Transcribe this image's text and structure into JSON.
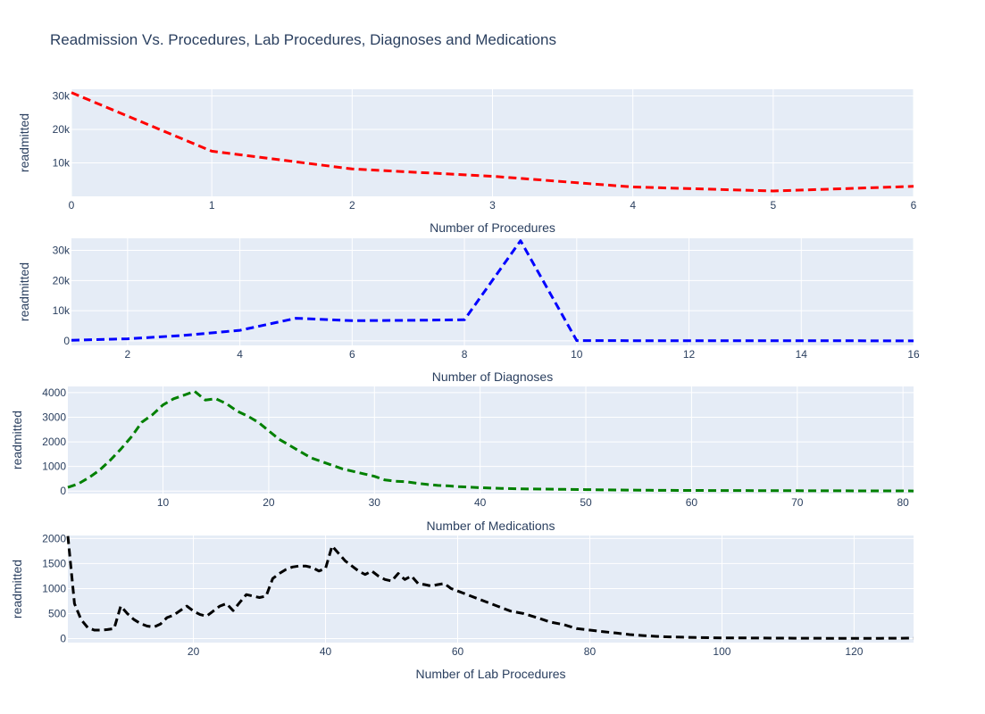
{
  "chart_data": {
    "type": "line",
    "title": "Readmission Vs. Procedures, Lab Procedures, Diagnoses and Medications",
    "subplots": [
      {
        "name": "procedures",
        "xlabel": "Number of Procedures",
        "ylabel": "readmitted",
        "color": "#ff0000",
        "dash": "dashed",
        "xlim": [
          0,
          6
        ],
        "ylim": [
          0,
          32000
        ],
        "xticks": [
          0,
          1,
          2,
          3,
          4,
          5,
          6
        ],
        "xtick_labels": [
          "0",
          "1",
          "2",
          "3",
          "4",
          "5",
          "6"
        ],
        "yticks": [
          10000,
          20000,
          30000
        ],
        "ytick_labels": [
          "10k",
          "20k",
          "30k"
        ],
        "x": [
          0,
          1,
          2,
          3,
          4,
          5,
          6
        ],
        "y": [
          31000,
          13500,
          8200,
          6000,
          2800,
          1600,
          3000
        ]
      },
      {
        "name": "diagnoses",
        "xlabel": "Number of Diagnoses",
        "ylabel": "readmitted",
        "color": "#0000ff",
        "dash": "dashed",
        "xlim": [
          1,
          16
        ],
        "ylim": [
          -1500,
          34000
        ],
        "xticks": [
          2,
          4,
          6,
          8,
          10,
          12,
          14,
          16
        ],
        "xtick_labels": [
          "2",
          "4",
          "6",
          "8",
          "10",
          "12",
          "14",
          "16"
        ],
        "yticks": [
          0,
          10000,
          20000,
          30000
        ],
        "ytick_labels": [
          "0",
          "10k",
          "20k",
          "30k"
        ],
        "x": [
          1,
          2,
          3,
          4,
          5,
          6,
          7,
          8,
          9,
          10,
          11,
          12,
          13,
          14,
          15,
          16
        ],
        "y": [
          200,
          700,
          1800,
          3500,
          7500,
          6700,
          6800,
          7000,
          33200,
          100,
          80,
          60,
          50,
          40,
          30,
          20
        ]
      },
      {
        "name": "medications",
        "xlabel": "Number of Medications",
        "ylabel": "readmitted",
        "color": "#008000",
        "dash": "dashed",
        "xlim": [
          1,
          81
        ],
        "ylim": [
          -100,
          4250
        ],
        "xticks": [
          10,
          20,
          30,
          40,
          50,
          60,
          70,
          80
        ],
        "xtick_labels": [
          "10",
          "20",
          "30",
          "40",
          "50",
          "60",
          "70",
          "80"
        ],
        "yticks": [
          0,
          1000,
          2000,
          3000,
          4000
        ],
        "ytick_labels": [
          "0",
          "1000",
          "2000",
          "3000",
          "4000"
        ],
        "x": [
          1,
          2,
          3,
          4,
          5,
          6,
          7,
          8,
          9,
          10,
          11,
          12,
          13,
          14,
          15,
          16,
          17,
          18,
          19,
          20,
          21,
          22,
          23,
          24,
          25,
          26,
          27,
          28,
          29,
          30,
          31,
          32,
          33,
          34,
          35,
          36,
          37,
          38,
          39,
          40,
          42,
          44,
          46,
          48,
          50,
          52,
          54,
          56,
          58,
          60,
          62,
          64,
          66,
          68,
          70,
          72,
          74,
          76,
          78,
          80,
          81
        ],
        "y": [
          150,
          300,
          550,
          850,
          1250,
          1700,
          2200,
          2800,
          3100,
          3500,
          3750,
          3900,
          4050,
          3700,
          3750,
          3550,
          3250,
          3050,
          2800,
          2450,
          2100,
          1850,
          1600,
          1350,
          1200,
          1050,
          900,
          800,
          700,
          600,
          450,
          400,
          380,
          320,
          270,
          230,
          210,
          180,
          160,
          140,
          110,
          90,
          80,
          70,
          60,
          50,
          40,
          35,
          30,
          28,
          25,
          22,
          20,
          18,
          16,
          14,
          12,
          10,
          8,
          7,
          6
        ]
      },
      {
        "name": "lab-procedures",
        "xlabel": "Number of Lab Procedures",
        "ylabel": "readmitted",
        "color": "#000000",
        "dash": "dashed",
        "xlim": [
          1,
          129
        ],
        "ylim": [
          -80,
          2060
        ],
        "xticks": [
          20,
          40,
          60,
          80,
          100,
          120
        ],
        "xtick_labels": [
          "20",
          "40",
          "60",
          "80",
          "100",
          "120"
        ],
        "yticks": [
          0,
          500,
          1000,
          1500,
          2000
        ],
        "ytick_labels": [
          "0",
          "500",
          "1000",
          "1500",
          "2000"
        ],
        "x": [
          1,
          2,
          3,
          4,
          5,
          6,
          7,
          8,
          9,
          10,
          11,
          12,
          13,
          14,
          15,
          16,
          17,
          18,
          19,
          20,
          21,
          22,
          23,
          24,
          25,
          26,
          27,
          28,
          29,
          30,
          31,
          32,
          33,
          34,
          35,
          36,
          37,
          38,
          39,
          40,
          41,
          42,
          43,
          44,
          45,
          46,
          47,
          48,
          49,
          50,
          51,
          52,
          53,
          54,
          55,
          56,
          57,
          58,
          59,
          60,
          61,
          62,
          64,
          66,
          68,
          70,
          72,
          74,
          76,
          78,
          80,
          82,
          84,
          86,
          88,
          90,
          92,
          94,
          96,
          98,
          100,
          104,
          108,
          112,
          116,
          120,
          124,
          129
        ],
        "y": [
          2050,
          700,
          380,
          220,
          170,
          170,
          180,
          200,
          650,
          500,
          380,
          300,
          250,
          230,
          290,
          420,
          470,
          560,
          650,
          550,
          480,
          450,
          550,
          650,
          700,
          560,
          720,
          880,
          850,
          820,
          850,
          1200,
          1300,
          1380,
          1430,
          1450,
          1450,
          1420,
          1350,
          1400,
          1850,
          1700,
          1550,
          1450,
          1350,
          1280,
          1350,
          1250,
          1180,
          1150,
          1300,
          1180,
          1250,
          1100,
          1080,
          1050,
          1080,
          1100,
          1000,
          950,
          900,
          850,
          750,
          650,
          550,
          500,
          420,
          330,
          280,
          200,
          170,
          140,
          110,
          80,
          60,
          45,
          35,
          28,
          22,
          18,
          15,
          12,
          10,
          8,
          6,
          5,
          5,
          10
        ]
      }
    ]
  }
}
